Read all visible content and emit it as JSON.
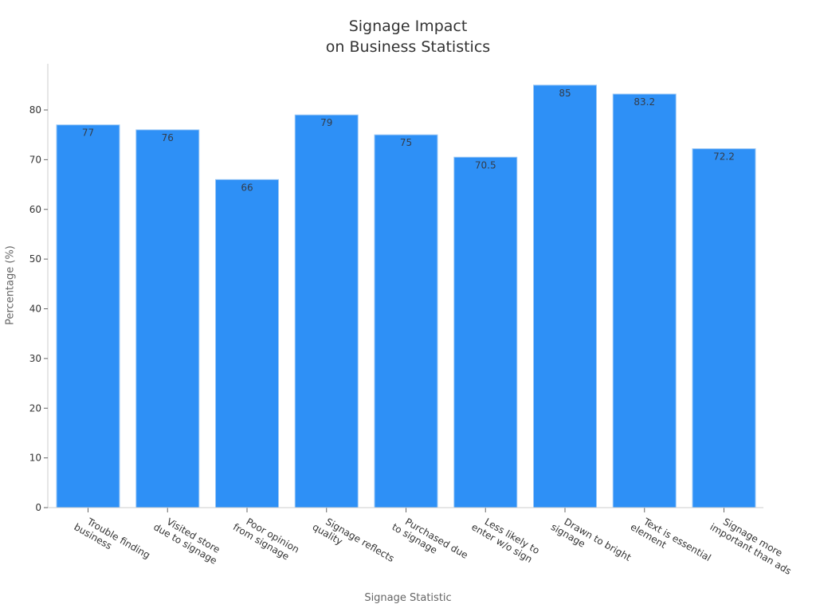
{
  "title_line1": "Signage Impact",
  "title_line2": "on Business Statistics",
  "colors": {
    "bar": "#2e90f6",
    "bar_edge": "#9cc8f5",
    "axis": "#cccccc",
    "text": "#333333",
    "label_text": "#666666"
  },
  "chart_data": {
    "type": "bar",
    "title": "Signage Impact on Business Statistics",
    "xlabel": "Signage Statistic",
    "ylabel": "Percentage (%)",
    "categories": [
      "Trouble finding business",
      "Visited store due to signage",
      "Poor opinion from signage",
      "Signage reflects quality",
      "Purchased due to signage",
      "Less likely to enter w/o sign",
      "Drawn to bright signage",
      "Text is essential element",
      "Signage more important than ads"
    ],
    "category_lines": [
      [
        "Trouble finding",
        "business"
      ],
      [
        "Visited store",
        "due to signage"
      ],
      [
        "Poor opinion",
        "from signage"
      ],
      [
        "Signage reflects",
        "quality"
      ],
      [
        "Purchased due",
        "to signage"
      ],
      [
        "Less likely to",
        "enter w/o sign"
      ],
      [
        "Drawn to bright",
        "signage"
      ],
      [
        "Text is essential",
        "element"
      ],
      [
        "Signage more",
        "important than ads"
      ]
    ],
    "values": [
      77,
      76,
      66,
      79,
      75,
      70.5,
      85,
      83.2,
      72.2
    ],
    "value_labels": [
      "77",
      "76",
      "66",
      "79",
      "75",
      "70.5",
      "85",
      "83.2",
      "72.2"
    ],
    "yticks": [
      0,
      10,
      20,
      30,
      40,
      50,
      60,
      70,
      80
    ],
    "ylim": [
      0,
      89
    ],
    "grid": false,
    "legend": null
  }
}
